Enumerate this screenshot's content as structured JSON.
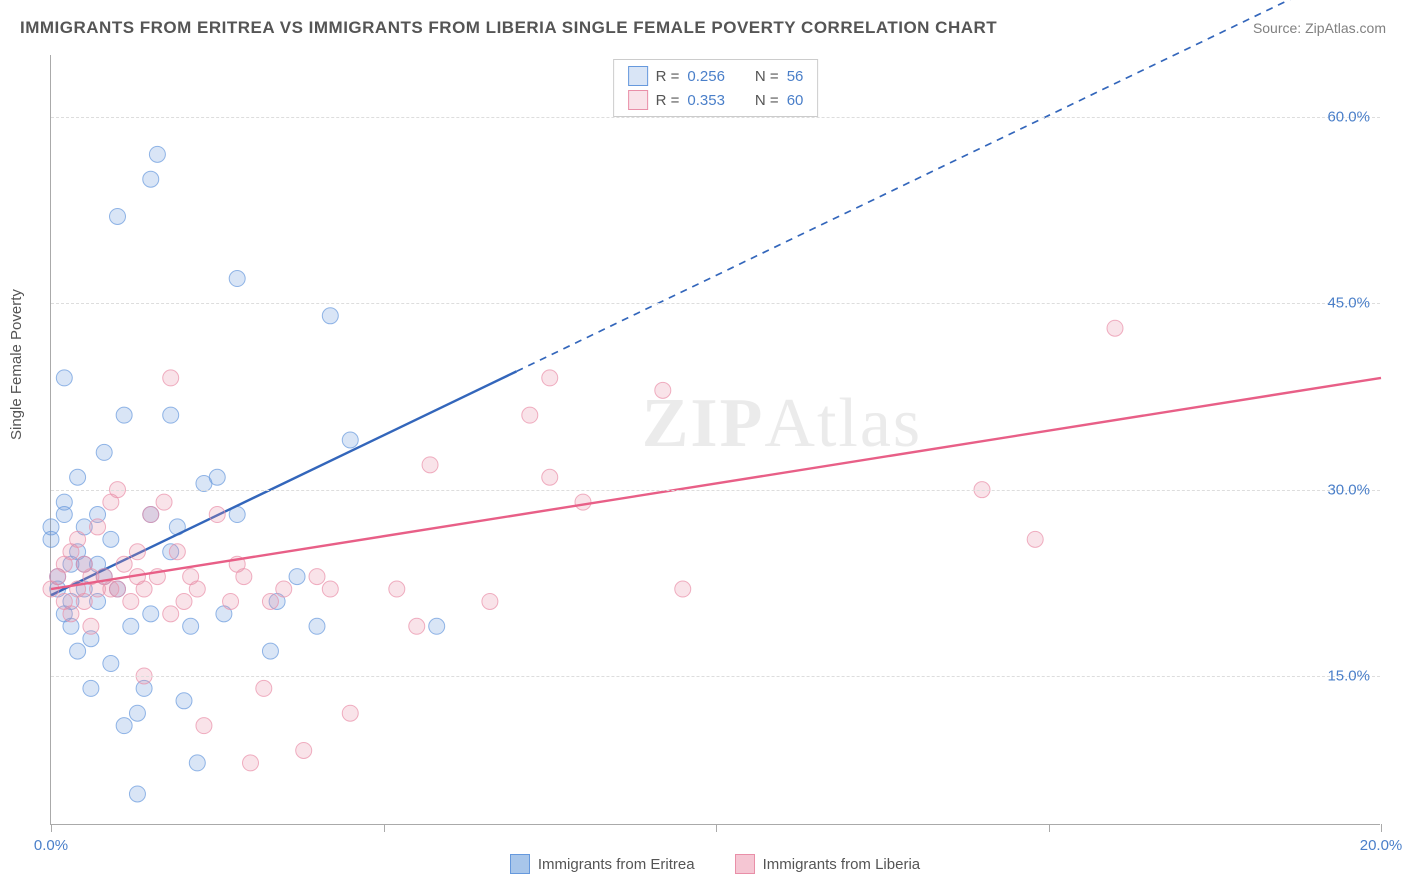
{
  "title": "IMMIGRANTS FROM ERITREA VS IMMIGRANTS FROM LIBERIA SINGLE FEMALE POVERTY CORRELATION CHART",
  "source": "Source: ZipAtlas.com",
  "watermark_a": "ZIP",
  "watermark_b": "Atlas",
  "ylabel": "Single Female Poverty",
  "chart": {
    "type": "scatter-with-regression",
    "background_color": "#ffffff",
    "grid_color": "#dddddd",
    "axis_color": "#aaaaaa",
    "xlim": [
      0,
      20
    ],
    "ylim": [
      3,
      65
    ],
    "xtick_positions": [
      0,
      5,
      10,
      15,
      20
    ],
    "xtick_labels": [
      "0.0%",
      "",
      "",
      "",
      "20.0%"
    ],
    "ytick_positions": [
      15,
      30,
      45,
      60
    ],
    "ytick_labels": [
      "15.0%",
      "30.0%",
      "45.0%",
      "60.0%"
    ],
    "label_fontsize": 15,
    "tick_color": "#4a7fc9",
    "marker_radius": 8,
    "marker_fill_opacity": 0.25,
    "marker_stroke_opacity": 0.7,
    "line_width": 2.4
  },
  "series": [
    {
      "name": "Immigrants from Eritrea",
      "color": "#6699dd",
      "line_color": "#3366bb",
      "R": "0.256",
      "N": "56",
      "regression": {
        "x0": 0,
        "y0": 21.5,
        "x1": 7,
        "y1": 40,
        "x2": 20,
        "y2": 73,
        "dash_after_x": 7
      },
      "points": [
        [
          0.0,
          26
        ],
        [
          0.0,
          27
        ],
        [
          0.1,
          22
        ],
        [
          0.1,
          23
        ],
        [
          0.2,
          28
        ],
        [
          0.2,
          29
        ],
        [
          0.2,
          39
        ],
        [
          0.2,
          20
        ],
        [
          0.3,
          19
        ],
        [
          0.3,
          21
        ],
        [
          0.3,
          24
        ],
        [
          0.4,
          25
        ],
        [
          0.4,
          31
        ],
        [
          0.5,
          22
        ],
        [
          0.5,
          24
        ],
        [
          0.5,
          27
        ],
        [
          0.6,
          14
        ],
        [
          0.6,
          18
        ],
        [
          0.7,
          21
        ],
        [
          0.7,
          24
        ],
        [
          0.7,
          28
        ],
        [
          0.8,
          33
        ],
        [
          0.8,
          23
        ],
        [
          0.9,
          16
        ],
        [
          0.9,
          26
        ],
        [
          1.0,
          52
        ],
        [
          1.0,
          22
        ],
        [
          1.1,
          36
        ],
        [
          1.2,
          19
        ],
        [
          1.3,
          5.5
        ],
        [
          1.3,
          12
        ],
        [
          1.4,
          14
        ],
        [
          1.5,
          28
        ],
        [
          1.5,
          55
        ],
        [
          1.5,
          20
        ],
        [
          1.6,
          57
        ],
        [
          1.8,
          25
        ],
        [
          1.8,
          36
        ],
        [
          1.9,
          27
        ],
        [
          2.0,
          13
        ],
        [
          2.1,
          19
        ],
        [
          2.2,
          8
        ],
        [
          2.3,
          30.5
        ],
        [
          2.5,
          31
        ],
        [
          2.6,
          20
        ],
        [
          2.8,
          47
        ],
        [
          2.8,
          28
        ],
        [
          3.3,
          17
        ],
        [
          3.4,
          21
        ],
        [
          3.7,
          23
        ],
        [
          4.0,
          19
        ],
        [
          4.5,
          34
        ],
        [
          4.2,
          44
        ],
        [
          5.8,
          19
        ],
        [
          1.1,
          11
        ],
        [
          0.4,
          17
        ]
      ]
    },
    {
      "name": "Immigrants from Liberia",
      "color": "#e98fa8",
      "line_color": "#e85f87",
      "R": "0.353",
      "N": "60",
      "regression": {
        "x0": 0,
        "y0": 22,
        "x1": 20,
        "y1": 39,
        "dash_after_x": 20
      },
      "points": [
        [
          0.0,
          22
        ],
        [
          0.1,
          23
        ],
        [
          0.2,
          24
        ],
        [
          0.2,
          21
        ],
        [
          0.3,
          25
        ],
        [
          0.3,
          20
        ],
        [
          0.4,
          22
        ],
        [
          0.4,
          26
        ],
        [
          0.5,
          24
        ],
        [
          0.5,
          21
        ],
        [
          0.6,
          23
        ],
        [
          0.6,
          19
        ],
        [
          0.7,
          27
        ],
        [
          0.7,
          22
        ],
        [
          0.8,
          23
        ],
        [
          0.9,
          22
        ],
        [
          0.9,
          29
        ],
        [
          1.0,
          30
        ],
        [
          1.0,
          22
        ],
        [
          1.1,
          24
        ],
        [
          1.2,
          21
        ],
        [
          1.3,
          25
        ],
        [
          1.3,
          23
        ],
        [
          1.4,
          15
        ],
        [
          1.4,
          22
        ],
        [
          1.5,
          28
        ],
        [
          1.6,
          23
        ],
        [
          1.7,
          29
        ],
        [
          1.8,
          20
        ],
        [
          1.8,
          39
        ],
        [
          1.9,
          25
        ],
        [
          2.0,
          21
        ],
        [
          2.1,
          23
        ],
        [
          2.2,
          22
        ],
        [
          2.3,
          11
        ],
        [
          2.5,
          28
        ],
        [
          2.7,
          21
        ],
        [
          2.8,
          24
        ],
        [
          2.9,
          23
        ],
        [
          3.0,
          8
        ],
        [
          3.2,
          14
        ],
        [
          3.3,
          21
        ],
        [
          3.5,
          22
        ],
        [
          3.8,
          9
        ],
        [
          4.0,
          23
        ],
        [
          4.2,
          22
        ],
        [
          4.5,
          12
        ],
        [
          5.2,
          22
        ],
        [
          5.5,
          19
        ],
        [
          5.7,
          32
        ],
        [
          6.6,
          21
        ],
        [
          7.2,
          36
        ],
        [
          7.5,
          31
        ],
        [
          7.5,
          39
        ],
        [
          8.0,
          29
        ],
        [
          9.2,
          38
        ],
        [
          9.5,
          22
        ],
        [
          14.0,
          30
        ],
        [
          14.8,
          26
        ],
        [
          16.0,
          43
        ]
      ]
    }
  ],
  "legend_top_labels": {
    "R": "R =",
    "N": "N ="
  },
  "bottom_legend": [
    {
      "swatch": "#a8c6ea",
      "border": "#6699dd",
      "label": "Immigrants from Eritrea"
    },
    {
      "swatch": "#f5c6d3",
      "border": "#e98fa8",
      "label": "Immigrants from Liberia"
    }
  ]
}
